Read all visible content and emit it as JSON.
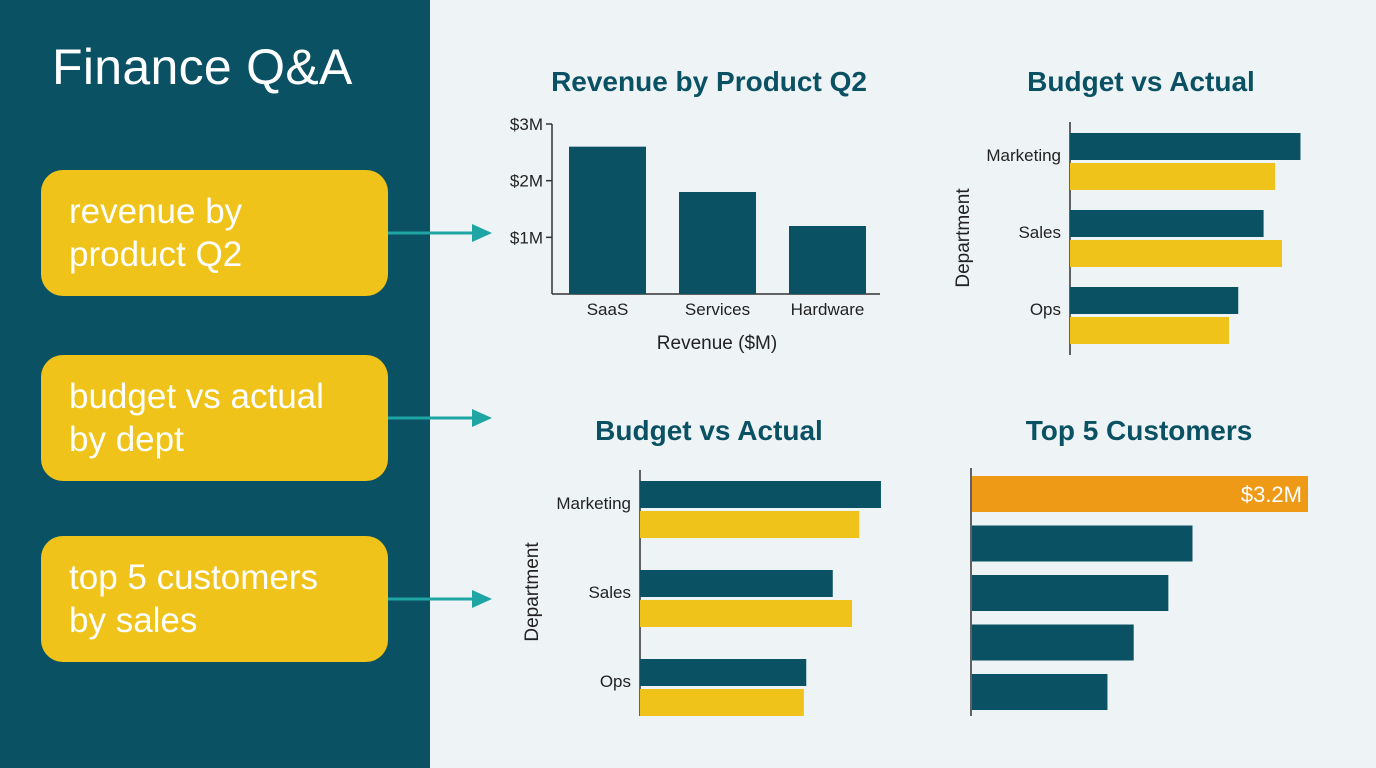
{
  "app": {
    "title": "Finance Q&A"
  },
  "colors": {
    "sidebar": "#0a5164",
    "card": "#efc319",
    "primary_bar": "#0a5164",
    "secondary_bar": "#efc319",
    "highlight_bar": "#ef9a16",
    "arrow": "#1fa5a4",
    "title_text": "#0a5164"
  },
  "queries": [
    {
      "text": "revenue by product Q2"
    },
    {
      "text": "budget vs actual by dept"
    },
    {
      "text": "top 5 customers by sales"
    }
  ],
  "chart_data": [
    {
      "type": "bar",
      "title": "Revenue by Product Q2",
      "categories": [
        "SaaS",
        "Services",
        "Hardware"
      ],
      "values": [
        2.6,
        1.8,
        1.2
      ],
      "xlabel": "Revenue ($M)",
      "ylabel": "",
      "ylim": [
        0,
        3
      ],
      "y_ticks": [
        1,
        2,
        3
      ],
      "y_tick_labels": [
        "$1M",
        "$2M",
        "$3M"
      ],
      "grid": false
    },
    {
      "type": "bar",
      "orientation": "horizontal",
      "title": "Budget vs Actual",
      "ylabel": "Department",
      "categories": [
        "Marketing",
        "Sales",
        "Ops"
      ],
      "series": [
        {
          "values": [
            10.0,
            8.4,
            7.3
          ]
        },
        {
          "values": [
            8.9,
            9.2,
            6.9
          ]
        }
      ],
      "xlim": [
        0,
        10.5
      ],
      "grid": false
    },
    {
      "type": "bar",
      "orientation": "horizontal",
      "title": "Budget vs Actual",
      "ylabel": "Department",
      "categories": [
        "Marketing",
        "Sales",
        "Ops"
      ],
      "series": [
        {
          "values": [
            10.0,
            8.0,
            6.9
          ]
        },
        {
          "values": [
            9.1,
            8.8,
            6.8
          ]
        }
      ],
      "xlim": [
        0,
        10.5
      ],
      "grid": false
    },
    {
      "type": "bar",
      "orientation": "horizontal",
      "title": "Top 5 Customers",
      "values": [
        3.2,
        2.1,
        1.87,
        1.54,
        1.29
      ],
      "highlight_index": 0,
      "data_labels": [
        "$3.2M",
        "",
        "",
        "",
        ""
      ],
      "xlim": [
        0,
        3.2
      ],
      "grid": false
    }
  ]
}
